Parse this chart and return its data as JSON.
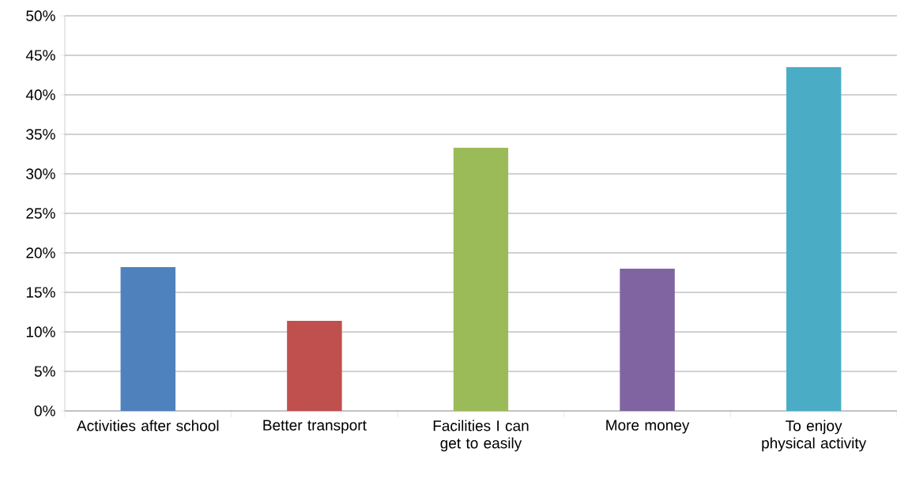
{
  "chart_data": {
    "type": "bar",
    "categories": [
      "Activities after school",
      "Better transport",
      "Facilities I can get to easily",
      "More money",
      "To enjoy physical activity"
    ],
    "values": [
      18.2,
      11.4,
      33.3,
      18.0,
      43.5
    ],
    "colors": [
      "#4f81bd",
      "#c0504d",
      "#9bbb59",
      "#8064a2",
      "#4bacc6"
    ],
    "ylim": [
      0,
      50
    ],
    "yticks": [
      {
        "value": 0,
        "label": "0%"
      },
      {
        "value": 5,
        "label": "5%"
      },
      {
        "value": 10,
        "label": "10%"
      },
      {
        "value": 15,
        "label": "15%"
      },
      {
        "value": 20,
        "label": "20%"
      },
      {
        "value": 25,
        "label": "25%"
      },
      {
        "value": 30,
        "label": "30%"
      },
      {
        "value": 35,
        "label": "35%"
      },
      {
        "value": 40,
        "label": "40%"
      },
      {
        "value": 45,
        "label": "45%"
      },
      {
        "value": 50,
        "label": "50%"
      }
    ],
    "grid": "y"
  }
}
